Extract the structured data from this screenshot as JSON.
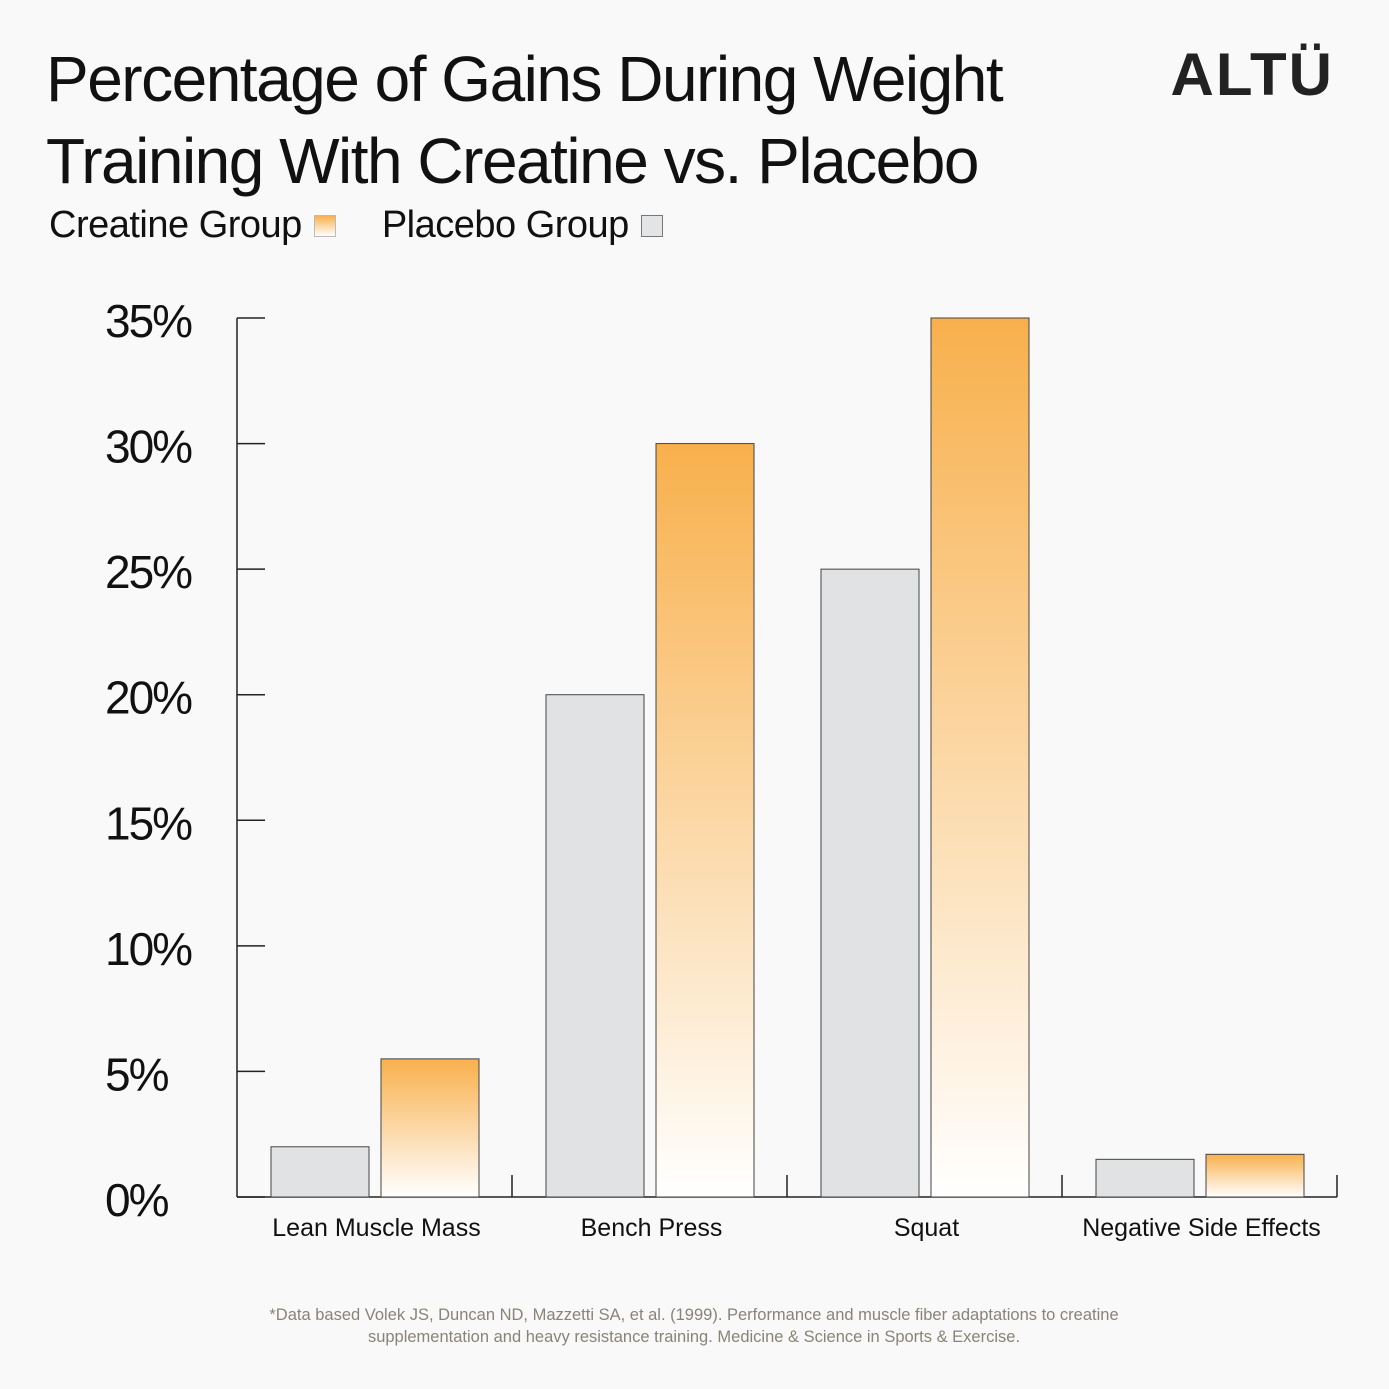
{
  "title_line1": "Percentage of Gains During Weight",
  "title_line2": "Training With Creatine vs. Placebo",
  "brand": "ALTÜ",
  "legend": {
    "creatine_label": "Creatine Group",
    "placebo_label": "Placebo Group"
  },
  "footnote_line1": "*Data based Volek JS, Duncan ND, Mazzetti SA, et al. (1999). Performance and muscle fiber adaptations to creatine",
  "footnote_line2": "supplementation and heavy resistance training. Medicine & Science in Sports & Exercise.",
  "colors": {
    "creatine_top": "#f8b04c",
    "creatine_bottom": "#ffffff",
    "placebo": "#e1e2e4",
    "axis": "#222222"
  },
  "chart_data": {
    "type": "bar",
    "title": "Percentage of Gains During Weight Training With Creatine vs. Placebo",
    "categories": [
      "Lean Muscle Mass",
      "Bench Press",
      "Squat",
      "Negative Side Effects"
    ],
    "series": [
      {
        "name": "Placebo Group",
        "values": [
          2,
          20,
          25,
          1.5
        ]
      },
      {
        "name": "Creatine Group",
        "values": [
          5.5,
          30,
          35,
          1.7
        ]
      }
    ],
    "ylim": [
      0,
      35
    ],
    "yticks": [
      0,
      5,
      10,
      15,
      20,
      25,
      30,
      35
    ],
    "ytick_labels": [
      "0%",
      "5%",
      "10%",
      "15%",
      "20%",
      "25%",
      "30%",
      "35%"
    ],
    "xlabel": "",
    "ylabel": "",
    "legend_position": "top-left",
    "grid": false
  }
}
